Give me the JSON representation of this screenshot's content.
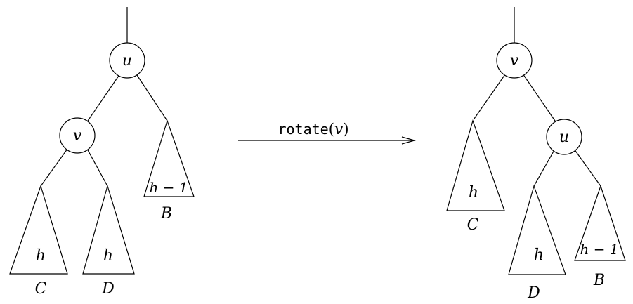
{
  "left_tree": {
    "root": "u",
    "child": "v",
    "sub_c": {
      "height": "h",
      "name": "C"
    },
    "sub_d": {
      "height": "h",
      "name": "D"
    },
    "sub_b": {
      "height": "h − 1",
      "name": "B"
    }
  },
  "operation": {
    "func": "rotate",
    "open": "(",
    "arg": "v",
    "close": ")"
  },
  "right_tree": {
    "root": "v",
    "child": "u",
    "sub_c": {
      "height": "h",
      "name": "C"
    },
    "sub_d": {
      "height": "h",
      "name": "D"
    },
    "sub_b": {
      "height": "h − 1",
      "name": "B"
    }
  }
}
